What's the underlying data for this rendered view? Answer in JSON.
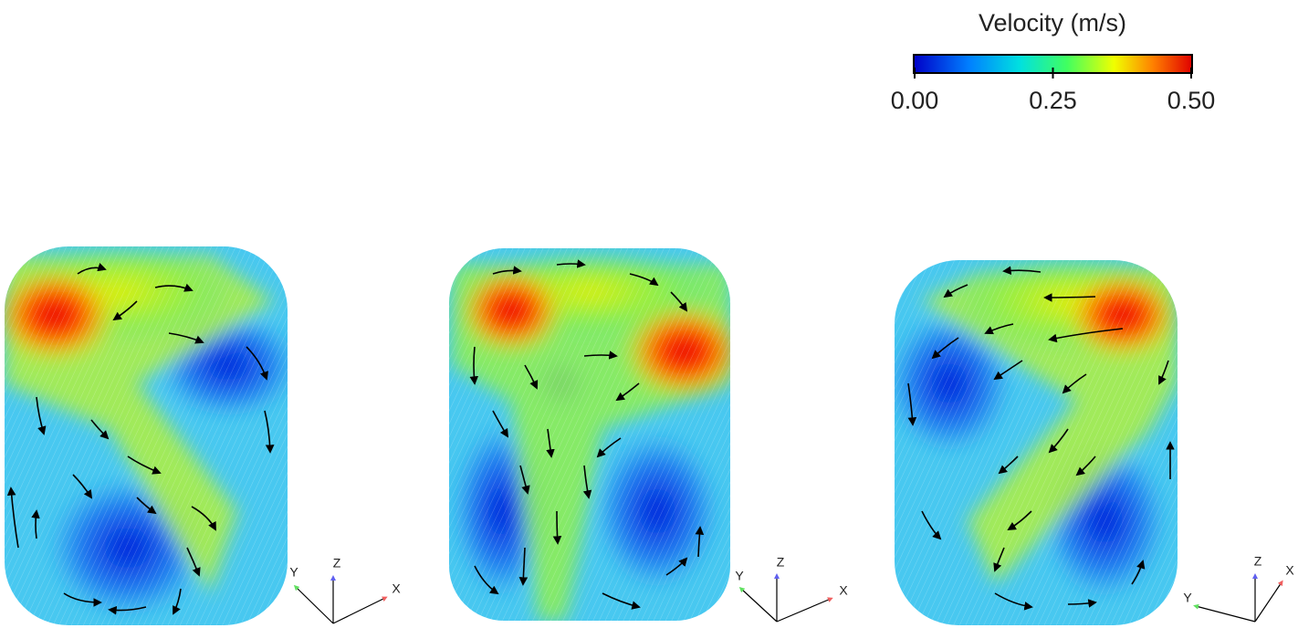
{
  "colorbar": {
    "title": "Velocity (m/s)",
    "lim": [
      0,
      0.5
    ],
    "ticks": [
      {
        "value": 0,
        "label": "0.00"
      },
      {
        "value": 0.25,
        "label": "0.25"
      },
      {
        "value": 0.5,
        "label": "0.50"
      }
    ]
  },
  "panels": [
    {
      "axes": {
        "x": "X",
        "y": "Y",
        "z": "Z"
      }
    },
    {
      "axes": {
        "x": "X",
        "y": "Y",
        "z": "Z"
      }
    },
    {
      "axes": {
        "x": "X",
        "y": "Y",
        "z": "Z"
      }
    }
  ]
}
